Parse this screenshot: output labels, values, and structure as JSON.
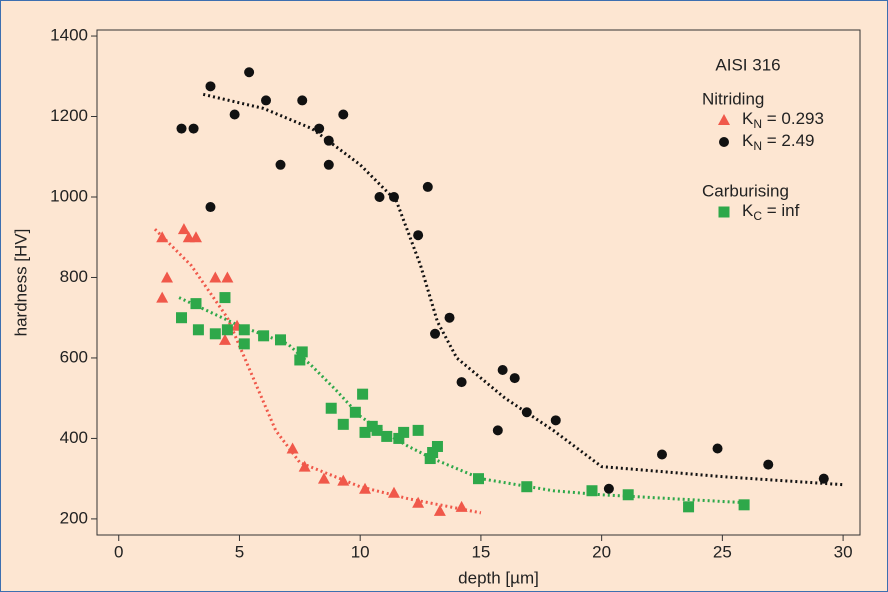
{
  "chart_data": {
    "type": "scatter",
    "x_label": "depth [µm]",
    "y_label": "hardness [HV]",
    "xlim": [
      -0.9,
      30.7
    ],
    "ylim": [
      160,
      1415
    ],
    "xticks": [
      0,
      5,
      10,
      15,
      20,
      25,
      30
    ],
    "yticks": [
      200,
      400,
      600,
      800,
      1000,
      1200,
      1400
    ],
    "legend_title": "AISI 316",
    "legend_groups": [
      "Nitriding",
      "Carburising"
    ],
    "series": [
      {
        "name": [
          "K",
          "N",
          " = 0.293"
        ],
        "group": 0,
        "marker": "triangle",
        "color": "#f0584a",
        "x": [
          1.8,
          1.8,
          2.0,
          2.7,
          2.9,
          3.2,
          4.0,
          4.5,
          4.4,
          4.9,
          7.2,
          7.7,
          8.5,
          9.3,
          10.2,
          11.4,
          12.4,
          13.3,
          14.2
        ],
        "values": [
          750,
          900,
          800,
          920,
          900,
          900,
          800,
          800,
          645,
          680,
          375,
          330,
          300,
          295,
          275,
          265,
          240,
          220,
          230
        ],
        "fit_x": [
          1.5,
          3,
          4.5,
          5.5,
          6.5,
          7.5,
          10,
          12,
          15
        ],
        "fit_y": [
          920,
          830,
          700,
          560,
          420,
          340,
          280,
          250,
          215
        ]
      },
      {
        "name": [
          "K",
          "N",
          " = 2.49"
        ],
        "group": 0,
        "marker": "circle",
        "color": "#111111",
        "x": [
          2.6,
          3.1,
          3.8,
          3.8,
          4.8,
          5.4,
          6.1,
          6.7,
          7.6,
          8.3,
          8.7,
          8.7,
          9.3,
          10.8,
          11.4,
          12.4,
          12.8,
          13.1,
          13.7,
          14.2,
          15.7,
          15.9,
          16.4,
          16.9,
          18.1,
          20.3,
          22.5,
          24.8,
          26.9,
          29.2
        ],
        "values": [
          1170,
          1170,
          1275,
          975,
          1205,
          1310,
          1240,
          1080,
          1240,
          1170,
          1140,
          1080,
          1205,
          1000,
          1000,
          905,
          1025,
          660,
          700,
          540,
          420,
          570,
          550,
          465,
          445,
          275,
          360,
          375,
          335,
          300
        ],
        "fit_x": [
          3.5,
          6,
          8,
          10,
          11.5,
          12.5,
          13.2,
          14,
          16,
          18,
          20,
          25,
          30
        ],
        "fit_y": [
          1255,
          1220,
          1170,
          1080,
          990,
          830,
          690,
          600,
          500,
          420,
          330,
          305,
          285
        ]
      },
      {
        "name": [
          "K",
          "C",
          " = inf"
        ],
        "group": 1,
        "marker": "square",
        "color": "#2ea84a",
        "x": [
          2.6,
          3.2,
          3.3,
          4.0,
          4.4,
          4.5,
          5.2,
          5.2,
          6.0,
          6.7,
          7.5,
          7.6,
          8.8,
          9.3,
          9.8,
          10.1,
          10.2,
          10.5,
          10.7,
          11.1,
          11.6,
          11.8,
          12.4,
          12.9,
          13.0,
          13.2,
          14.9,
          16.9,
          19.6,
          21.1,
          23.6,
          25.9
        ],
        "values": [
          700,
          735,
          670,
          660,
          750,
          670,
          670,
          635,
          655,
          645,
          595,
          615,
          475,
          435,
          465,
          510,
          415,
          430,
          420,
          405,
          400,
          415,
          420,
          350,
          365,
          380,
          300,
          280,
          270,
          260,
          230,
          235
        ],
        "fit_x": [
          2.5,
          5,
          7,
          8,
          9,
          10,
          11,
          12,
          13,
          15,
          18,
          20,
          26
        ],
        "fit_y": [
          750,
          680,
          635,
          580,
          520,
          455,
          415,
          380,
          350,
          300,
          270,
          260,
          240
        ]
      }
    ]
  }
}
